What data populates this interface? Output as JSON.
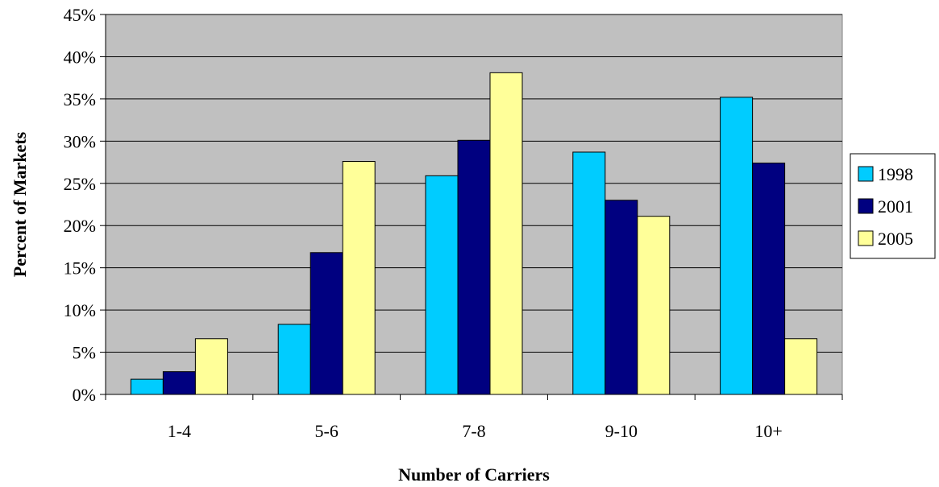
{
  "chart_data": {
    "type": "bar",
    "title": "",
    "xlabel": "Number of Carriers",
    "ylabel": "Percent of Markets",
    "categories": [
      "1-4",
      "5-6",
      "7-8",
      "9-10",
      "10+"
    ],
    "series": [
      {
        "name": "1998",
        "color": "#00CCFF",
        "values": [
          1.8,
          8.3,
          25.9,
          28.7,
          35.2
        ]
      },
      {
        "name": "2001",
        "color": "#000080",
        "values": [
          2.7,
          16.8,
          30.1,
          23.0,
          27.4
        ]
      },
      {
        "name": "2005",
        "color": "#FFFF99",
        "values": [
          6.6,
          27.6,
          38.1,
          21.1,
          6.6
        ]
      }
    ],
    "ylim": [
      0,
      45
    ],
    "yticks": [
      "0%",
      "5%",
      "10%",
      "15%",
      "20%",
      "25%",
      "30%",
      "35%",
      "40%",
      "45%"
    ],
    "grid": true,
    "legend_position": "right",
    "colors": {
      "plot_background": "#C0C0C0",
      "gridline": "#000000"
    }
  }
}
